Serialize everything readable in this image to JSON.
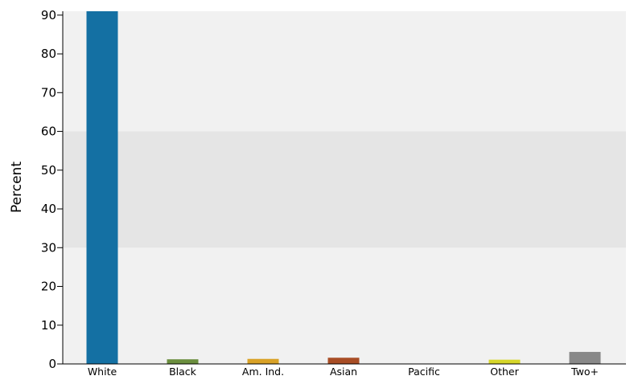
{
  "chart_data": {
    "type": "bar",
    "ylabel": "Percent",
    "xlabel": "",
    "ylim": [
      0,
      91
    ],
    "yticks": [
      0,
      10,
      20,
      30,
      40,
      50,
      60,
      70,
      80,
      90
    ],
    "categories": [
      "White",
      "Black",
      "Am. Ind.",
      "Asian",
      "Pacific",
      "Other",
      "Two+"
    ],
    "values": [
      91,
      1.2,
      1.3,
      1.6,
      0,
      1.1,
      3.1
    ],
    "bar_colors": [
      "#1470a3",
      "#6b8e3e",
      "#d9a227",
      "#a84d25",
      "#cccccc",
      "#d6d62a",
      "#888888"
    ],
    "background": {
      "plot_color": "#f1f1f1",
      "highlight_band": [
        30,
        60
      ],
      "highlight_color": "#e5e5e5"
    },
    "grid": false,
    "legend": "none"
  }
}
